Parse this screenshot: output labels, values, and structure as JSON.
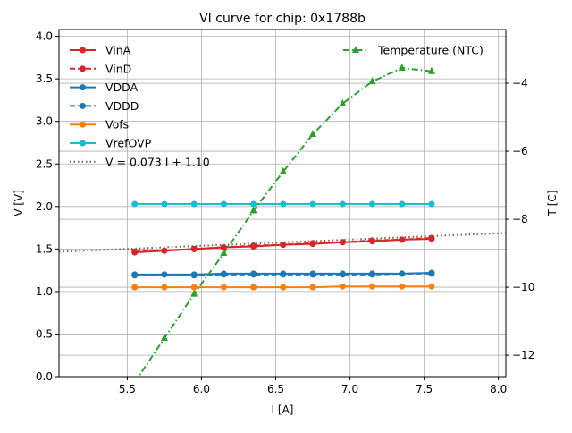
{
  "chart_data": {
    "type": "line",
    "title": "VI curve for chip: 0x1788b",
    "xlabel": "I [A]",
    "ylabel": "V [V]",
    "y2label": "T [C]",
    "xlim": [
      5.04,
      8.05
    ],
    "ylim": [
      0.0,
      4.08
    ],
    "y2lim": [
      -12.63,
      -2.42
    ],
    "grid": true,
    "xticks": [
      5.5,
      6.0,
      6.5,
      7.0,
      7.5,
      8.0
    ],
    "xtick_labels": [
      "5.5",
      "6.0",
      "6.5",
      "7.0",
      "7.5",
      "8.0"
    ],
    "yticks": [
      0.0,
      0.5,
      1.0,
      1.5,
      2.0,
      2.5,
      3.0,
      3.5,
      4.0
    ],
    "ytick_labels": [
      "0.0",
      "0.5",
      "1.0",
      "1.5",
      "2.0",
      "2.5",
      "3.0",
      "3.5",
      "4.0"
    ],
    "y2ticks": [
      -12,
      -10,
      -8,
      -6,
      -4
    ],
    "y2tick_labels": [
      "−12",
      "−10",
      "−8",
      "−6",
      "−4"
    ],
    "x": [
      5.55,
      5.75,
      5.95,
      6.15,
      6.35,
      6.55,
      6.75,
      6.95,
      7.15,
      7.35,
      7.55
    ],
    "series": [
      {
        "name": "VinA",
        "color": "#d62728",
        "dash": "solid",
        "marker": "circle",
        "axis": "left",
        "values": [
          1.46,
          1.48,
          1.5,
          1.52,
          1.53,
          1.55,
          1.56,
          1.58,
          1.59,
          1.61,
          1.62
        ]
      },
      {
        "name": "VinD",
        "color": "#d62728",
        "dash": "dashed",
        "marker": "circle",
        "axis": "left",
        "values": [
          1.47,
          1.48,
          1.5,
          1.52,
          1.54,
          1.55,
          1.57,
          1.58,
          1.6,
          1.61,
          1.63
        ]
      },
      {
        "name": "VDDA",
        "color": "#1f77b4",
        "dash": "solid",
        "marker": "circle",
        "axis": "left",
        "values": [
          1.2,
          1.2,
          1.2,
          1.21,
          1.21,
          1.21,
          1.21,
          1.21,
          1.21,
          1.21,
          1.22
        ]
      },
      {
        "name": "VDDD",
        "color": "#1f77b4",
        "dash": "dashed",
        "marker": "circle",
        "axis": "left",
        "values": [
          1.19,
          1.2,
          1.19,
          1.2,
          1.2,
          1.2,
          1.2,
          1.2,
          1.2,
          1.21,
          1.21
        ]
      },
      {
        "name": "Vofs",
        "color": "#ff7f0e",
        "dash": "solid",
        "marker": "circle",
        "axis": "left",
        "values": [
          1.05,
          1.05,
          1.05,
          1.05,
          1.05,
          1.05,
          1.05,
          1.06,
          1.06,
          1.06,
          1.06
        ]
      },
      {
        "name": "VrefOVP",
        "color": "#17becf",
        "dash": "solid",
        "marker": "circle",
        "axis": "left",
        "values": [
          2.03,
          2.03,
          2.03,
          2.03,
          2.03,
          2.03,
          2.03,
          2.03,
          2.03,
          2.03,
          2.03
        ]
      },
      {
        "name": "V = 0.073 I + 1.10",
        "color": "#8c564b",
        "dash": "dotted",
        "marker": "none",
        "axis": "left",
        "fit": {
          "slope": 0.073,
          "intercept": 1.1
        }
      },
      {
        "name": "Temperature (NTC)",
        "color": "#2ca02c",
        "dash": "dashdot",
        "marker": "triangle",
        "axis": "right",
        "values": [
          -12.8,
          -11.5,
          -10.2,
          -9.0,
          -7.75,
          -6.6,
          -5.5,
          -4.6,
          -3.95,
          -3.55,
          -3.65
        ]
      }
    ],
    "legend_left": [
      "VinA",
      "VinD",
      "VDDA",
      "VDDD",
      "Vofs",
      "VrefOVP",
      "V = 0.073 I + 1.10"
    ],
    "legend_right": [
      "Temperature (NTC)"
    ],
    "legend_placement": "top-left and top-right"
  }
}
